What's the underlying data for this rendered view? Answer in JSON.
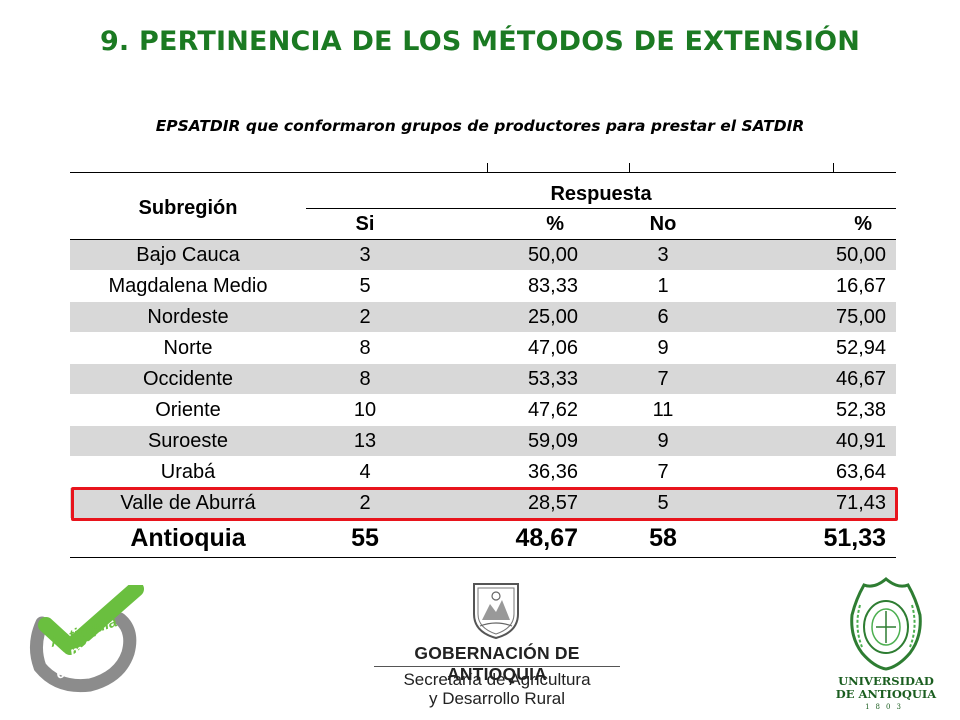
{
  "slide": {
    "title": "9. PERTINENCIA DE LOS MÉTODOS DE EXTENSIÓN",
    "subtitle": "EPSATDIR que conformaron grupos de productores para prestar el SATDIR"
  },
  "table": {
    "header_subregion": "Subregión",
    "header_respuesta": "Respuesta",
    "columns": [
      "Si",
      "%",
      "No",
      "%"
    ],
    "rows": [
      {
        "name": "Bajo Cauca",
        "si": "3",
        "pct_si": "50,00",
        "no": "3",
        "pct_no": "50,00"
      },
      {
        "name": "Magdalena Medio",
        "si": "5",
        "pct_si": "83,33",
        "no": "1",
        "pct_no": "16,67"
      },
      {
        "name": "Nordeste",
        "si": "2",
        "pct_si": "25,00",
        "no": "6",
        "pct_no": "75,00"
      },
      {
        "name": "Norte",
        "si": "8",
        "pct_si": "47,06",
        "no": "9",
        "pct_no": "52,94"
      },
      {
        "name": "Occidente",
        "si": "8",
        "pct_si": "53,33",
        "no": "7",
        "pct_no": "46,67"
      },
      {
        "name": "Oriente",
        "si": "10",
        "pct_si": "47,62",
        "no": "11",
        "pct_no": "52,38"
      },
      {
        "name": "Suroeste",
        "si": "13",
        "pct_si": "59,09",
        "no": "9",
        "pct_no": "40,91"
      },
      {
        "name": "Urabá",
        "si": "4",
        "pct_si": "36,36",
        "no": "7",
        "pct_no": "63,64"
      },
      {
        "name": "Valle de Aburrá",
        "si": "2",
        "pct_si": "28,57",
        "no": "5",
        "pct_no": "71,43"
      }
    ],
    "total": {
      "name": "Antioquia",
      "si": "55",
      "pct_si": "48,67",
      "no": "58",
      "pct_no": "51,33"
    },
    "highlighted_row": "Valle de Aburrá"
  },
  "logos": {
    "left": {
      "lines": [
        "Antioquia",
        "la más",
        "educada"
      ],
      "color": "#6abf3f"
    },
    "center": {
      "title": "GOBERNACIÓN DE ANTIOQUIA",
      "line1": "Secretaría de Agricultura",
      "line2": "y Desarrollo Rural"
    },
    "right": {
      "line1": "UNIVERSIDAD",
      "line2": "DE ANTIOQUIA",
      "year": "1803"
    }
  },
  "colors": {
    "title": "#1b7a22",
    "row_shade": "#d8d8d8",
    "highlight": "#e8141c"
  }
}
